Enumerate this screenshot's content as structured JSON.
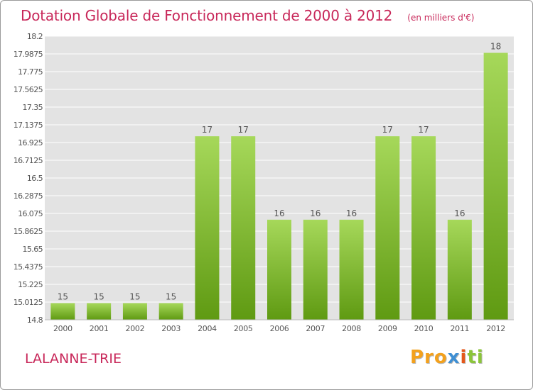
{
  "header": {
    "title": "Dotation Globale de Fonctionnement de 2000 à 2012",
    "unit_note": "(en milliers d'€)"
  },
  "footer": {
    "commune": "LALANNE-TRIE",
    "logo": {
      "p1": "Pro",
      "p2": "x",
      "p3": "i",
      "p4": "ti"
    }
  },
  "colors": {
    "bar_top": "#a6d85a",
    "bar_bottom": "#5f9a12",
    "plot_bg": "#e3e3e3",
    "grid": "#ffffff",
    "title": "#c8285a"
  },
  "chart_data": {
    "type": "bar",
    "title": "Dotation Globale de Fonctionnement de 2000 à 2012",
    "subtitle": "(en milliers d'€)",
    "xlabel": "",
    "ylabel": "",
    "categories": [
      "2000",
      "2001",
      "2002",
      "2003",
      "2004",
      "2005",
      "2006",
      "2007",
      "2008",
      "2009",
      "2010",
      "2011",
      "2012"
    ],
    "values": [
      15,
      15,
      15,
      15,
      17,
      17,
      16,
      16,
      16,
      17,
      17,
      16,
      18
    ],
    "data_labels": [
      "15",
      "15",
      "15",
      "15",
      "17",
      "17",
      "16",
      "16",
      "16",
      "17",
      "17",
      "16",
      "18"
    ],
    "ylim": [
      14.8,
      18.2
    ],
    "yticks": [
      14.8,
      15.0125,
      15.225,
      15.4375,
      15.65,
      15.8625,
      16.075,
      16.2875,
      16.5,
      16.7125,
      16.925,
      17.1375,
      17.35,
      17.5625,
      17.775,
      17.9875,
      18.2
    ],
    "ytick_labels": [
      "14.8",
      "15.0125",
      "15.225",
      "15.4375",
      "15.65",
      "15.8625",
      "16.075",
      "16.2875",
      "16.5",
      "16.7125",
      "16.925",
      "17.1375",
      "17.35",
      "17.5625",
      "17.775",
      "17.9875",
      "18.2"
    ],
    "grid": true,
    "legend": "none"
  }
}
